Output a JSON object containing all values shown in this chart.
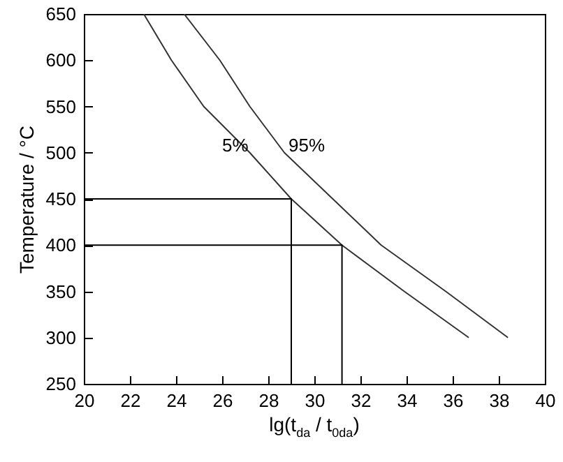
{
  "chart_data": {
    "type": "line",
    "xlabel": "lg(t$_{da}$ / t$_{0da}$)",
    "ylabel": "Temperature / °C",
    "xlim": [
      20,
      40
    ],
    "xticks": [
      20,
      22,
      24,
      26,
      28,
      30,
      32,
      34,
      36,
      38,
      40
    ],
    "ylim": [
      250,
      650
    ],
    "yticks": [
      250,
      300,
      350,
      400,
      450,
      500,
      550,
      600,
      650
    ],
    "grid": false,
    "line_style": "solid",
    "series": [
      {
        "name": "5%",
        "color": "#333333",
        "x": [
          22.6,
          23.8,
          25.2,
          27.2,
          29.0,
          31.2,
          33.9,
          36.7
        ],
        "values": [
          650,
          600,
          550,
          500,
          450,
          400,
          350,
          300
        ]
      },
      {
        "name": "95%",
        "color": "#333333",
        "x": [
          24.35,
          25.9,
          27.2,
          28.7,
          30.8,
          32.9,
          35.7,
          38.4
        ],
        "values": [
          650,
          600,
          550,
          500,
          450,
          400,
          350,
          300
        ]
      },
      {
        "color": "#000000",
        "x": [
          20,
          29.0,
          29.0
        ],
        "values": [
          450,
          450,
          250
        ]
      },
      {
        "color": "#000000",
        "x": [
          20,
          31.2,
          31.2
        ],
        "values": [
          400,
          400,
          250
        ]
      }
    ]
  }
}
